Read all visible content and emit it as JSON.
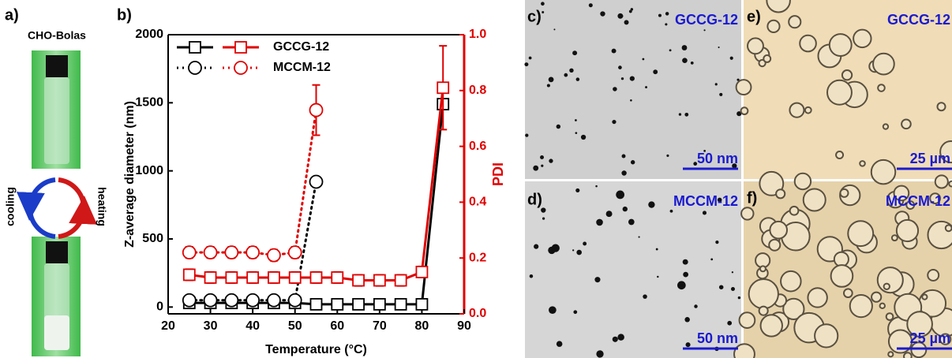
{
  "panels": {
    "a": {
      "label": "a)",
      "title": "CHO-Bolas",
      "cooling": "cooling",
      "heating": "heating"
    },
    "b": {
      "label": "b)"
    },
    "c": {
      "label": "c)",
      "name": "GCCG-12",
      "scale": "50 nm"
    },
    "d": {
      "label": "d)",
      "name": "MCCM-12",
      "scale": "50 nm"
    },
    "e": {
      "label": "e)",
      "name": "GCCG-12",
      "scale": "25 µm"
    },
    "f": {
      "label": "f)",
      "name": "MCCM-12",
      "scale": "25 µm"
    }
  },
  "chart_data": {
    "type": "line",
    "x_label": "Temperature (°C)",
    "y_label": "Z-average diameter (nm)",
    "y2_label": "PDI",
    "xlim": [
      20,
      90
    ],
    "xticks": [
      20,
      30,
      40,
      50,
      60,
      70,
      80,
      90
    ],
    "ylim": [
      -50,
      2000
    ],
    "yticks": [
      0,
      500,
      1000,
      1500,
      2000
    ],
    "y2lim": [
      0,
      1
    ],
    "y2ticks": [
      {
        "value": 0,
        "label": "0.0"
      },
      0.2,
      0.4,
      0.6,
      0.8,
      {
        "value": 1,
        "label": "1.0"
      }
    ],
    "series": [
      {
        "name": "GCCG-12",
        "color": "#000000",
        "marker": "square",
        "dash": "solid",
        "x": [
          25,
          30,
          35,
          40,
          45,
          50,
          55,
          60,
          65,
          70,
          75,
          80,
          85
        ],
        "values": [
          30,
          30,
          30,
          30,
          30,
          30,
          20,
          20,
          20,
          20,
          20,
          20,
          1490
        ],
        "errors": [
          null,
          null,
          null,
          null,
          null,
          null,
          null,
          null,
          null,
          null,
          null,
          null,
          null
        ]
      },
      {
        "name": "MCCM-12",
        "color": "#000000",
        "marker": "circle",
        "dash": "dotted",
        "x": [
          25,
          30,
          35,
          40,
          45,
          50,
          55
        ],
        "values": [
          50,
          50,
          50,
          50,
          50,
          50,
          920
        ],
        "errors": [
          null,
          null,
          null,
          null,
          null,
          null,
          30
        ]
      },
      {
        "name": "GCCG-12",
        "color": "#e00000",
        "marker": "square",
        "dash": "solid",
        "axis": "y2",
        "x": [
          25,
          30,
          35,
          40,
          45,
          50,
          55,
          60,
          65,
          70,
          75,
          80,
          85
        ],
        "values": [
          0.14,
          0.13,
          0.13,
          0.13,
          0.13,
          0.13,
          0.13,
          0.13,
          0.12,
          0.12,
          0.12,
          0.15,
          0.81
        ],
        "errors": [
          0.02,
          0.02,
          0.02,
          0.02,
          0.02,
          0.02,
          0.02,
          0.02,
          0.02,
          0.02,
          0.02,
          0.02,
          0.15
        ]
      },
      {
        "name": "MCCM-12",
        "color": "#e00000",
        "marker": "circle",
        "dash": "dotted",
        "axis": "y2",
        "x": [
          25,
          30,
          35,
          40,
          45,
          50,
          55
        ],
        "values": [
          0.22,
          0.22,
          0.22,
          0.22,
          0.21,
          0.22,
          0.73
        ],
        "errors": [
          0.02,
          0.02,
          0.02,
          0.02,
          0.02,
          0.02,
          0.09
        ]
      }
    ]
  }
}
